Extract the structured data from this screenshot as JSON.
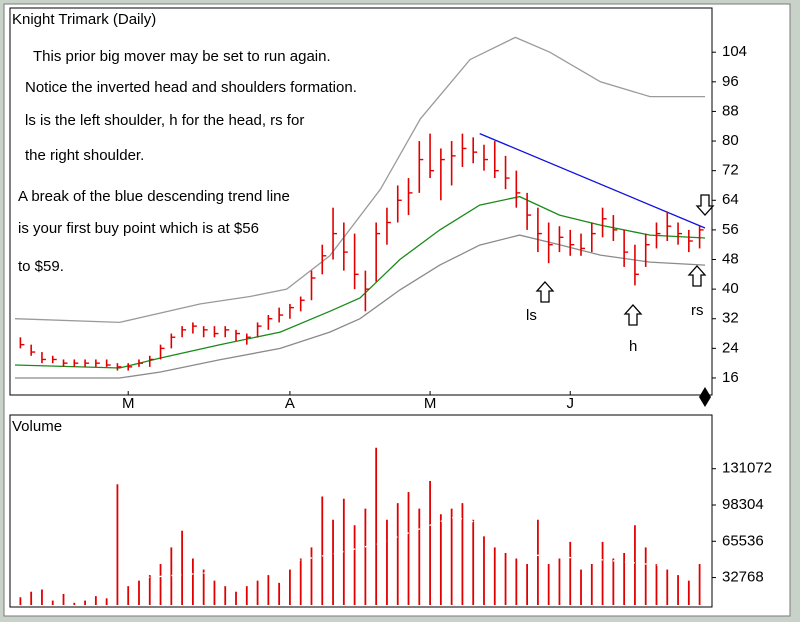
{
  "chart_data": [
    {
      "type": "hlc",
      "title": "Knight Trimark (Daily)",
      "annotations": [
        "This prior big mover may be set to run again.",
        "Notice the inverted head and shoulders formation.",
        "ls is the left shoulder, h for the head, rs for",
        "the right shoulder.",
        "A break of the blue descending trend line",
        "is your first buy point which is at $56",
        "to $59."
      ],
      "markers": [
        "ls",
        "h",
        "rs"
      ],
      "categories": [
        null,
        null,
        null,
        null,
        null,
        null,
        null,
        null,
        null,
        null,
        "M",
        null,
        null,
        null,
        null,
        null,
        null,
        null,
        null,
        null,
        null,
        null,
        null,
        null,
        null,
        "A",
        null,
        null,
        null,
        null,
        null,
        null,
        null,
        null,
        null,
        null,
        null,
        null,
        "M",
        null,
        null,
        null,
        null,
        null,
        null,
        null,
        null,
        null,
        null,
        null,
        null,
        "J",
        null,
        null,
        null,
        null,
        null,
        null,
        null,
        null,
        null,
        null,
        null,
        null
      ],
      "high": [
        27,
        25,
        23,
        22,
        21,
        21,
        21,
        21,
        21,
        20,
        20,
        21,
        22,
        25,
        28,
        30,
        31,
        30,
        30,
        30,
        29,
        28,
        31,
        33,
        35,
        36,
        38,
        45,
        52,
        62,
        58,
        55,
        45,
        58,
        62,
        68,
        70,
        80,
        82,
        78,
        80,
        82,
        81,
        79,
        80,
        76,
        72,
        66,
        62,
        58,
        57,
        56,
        55,
        58,
        62,
        60,
        56,
        52,
        55,
        58,
        61,
        58,
        56,
        57
      ],
      "low": [
        24,
        22,
        20,
        20,
        19,
        19,
        19,
        19,
        19,
        18,
        18,
        19,
        19,
        21,
        24,
        27,
        28,
        27,
        27,
        27,
        26,
        25,
        27,
        29,
        31,
        32,
        34,
        37,
        44,
        48,
        45,
        40,
        34,
        42,
        52,
        58,
        60,
        66,
        70,
        64,
        68,
        73,
        74,
        72,
        70,
        67,
        62,
        56,
        50,
        47,
        50,
        49,
        49,
        50,
        54,
        53,
        46,
        41,
        46,
        51,
        53,
        52,
        50,
        51
      ],
      "close": [
        25,
        23,
        21,
        21,
        20,
        20,
        20,
        20,
        19.5,
        19,
        19,
        20,
        21,
        24,
        27,
        29,
        30,
        29,
        28,
        29,
        28,
        27,
        30,
        32,
        33,
        35,
        37,
        43,
        49,
        55,
        50,
        44,
        40,
        55,
        58,
        64,
        66,
        75,
        72,
        75,
        76,
        78,
        77,
        75,
        72,
        70,
        66,
        60,
        55,
        52,
        54,
        52,
        51,
        55,
        59,
        56,
        50,
        44,
        52,
        55,
        57,
        55,
        53,
        56
      ],
      "color": "#e00000",
      "lines": [
        {
          "color": "#9a9a9a",
          "x": [
            -0.5,
            9.2,
            16.7,
            21.3,
            24.7,
            28.7,
            33.4,
            37.1,
            41.7,
            45.9,
            49.1,
            53.8,
            58.4,
            63.5
          ],
          "values": [
            32,
            31,
            36,
            38,
            40,
            49,
            67,
            86,
            102,
            108,
            104,
            96,
            92,
            92
          ]
        },
        {
          "color": "#1a8a1a",
          "x": [
            -0.5,
            9.2,
            13,
            18.5,
            24.1,
            28.7,
            31.5,
            35.2,
            38.9,
            42.6,
            46.3,
            50,
            53.8,
            58.4,
            63.5
          ],
          "values": [
            19.5,
            18.7,
            21.4,
            25,
            28.4,
            34,
            37.6,
            48,
            56,
            62.7,
            65,
            60,
            57.3,
            54.6,
            53.8
          ]
        },
        {
          "color": "#8a8a8a",
          "x": [
            -0.5,
            9.2,
            13,
            18.5,
            24.1,
            28.7,
            31.5,
            35.2,
            38.9,
            42.6,
            46.3,
            50,
            53.8,
            58.4,
            63.5
          ],
          "values": [
            16,
            16,
            17.6,
            20.9,
            24,
            28.4,
            32,
            39.8,
            46.5,
            51.9,
            54.6,
            52,
            49.2,
            47.3,
            46.5
          ]
        },
        {
          "color": "#1010e0",
          "x": [
            42.6,
            63.5
          ],
          "values": [
            82,
            56.5
          ]
        }
      ],
      "xlim": [
        -0.5,
        63.5
      ],
      "ylim": [
        11.4,
        115.4
      ],
      "yticks": [
        16,
        24,
        32,
        40,
        48,
        56,
        64,
        72,
        80,
        88,
        96,
        104
      ]
    },
    {
      "type": "bar",
      "title": "Volume",
      "values": [
        15000,
        20000,
        22000,
        12000,
        18000,
        10000,
        12000,
        16000,
        14000,
        117000,
        25000,
        30000,
        35000,
        45000,
        60000,
        75000,
        50000,
        40000,
        30000,
        25000,
        20000,
        25000,
        30000,
        35000,
        28000,
        40000,
        50000,
        60000,
        106000,
        85000,
        104000,
        80000,
        95000,
        150000,
        85000,
        100000,
        110000,
        95000,
        120000,
        90000,
        95000,
        100000,
        85000,
        70000,
        60000,
        55000,
        50000,
        45000,
        85000,
        45000,
        50000,
        65000,
        40000,
        45000,
        65000,
        50000,
        55000,
        80000,
        60000,
        45000,
        40000,
        35000,
        30000,
        45000
      ],
      "color": "#e00000",
      "lines": [
        {
          "color": "#ffffff",
          "x": [
            9.2,
            21.3,
            28.9,
            33.1,
            40,
            41.7,
            46.3,
            53.8,
            63.5
          ],
          "values": [
            31000,
            40000,
            54000,
            63000,
            87000,
            85000,
            54000,
            49000,
            40000
          ]
        }
      ],
      "xlim": [
        -0.5,
        63.5
      ],
      "ylim": [
        8000,
        157000
      ],
      "yticks": [
        32768,
        65536,
        98304,
        131072
      ]
    }
  ]
}
